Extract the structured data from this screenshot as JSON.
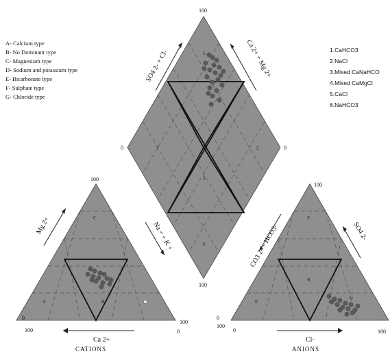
{
  "legend_types": [
    "A- Calcium type",
    "B- No Dominant type",
    "C- Magnesium type",
    "D- Sodium and potassium type",
    "E- Bicarbonate type",
    "F- Sulphate type",
    "G- Chloride type"
  ],
  "legend_water": [
    "1.CaHCO3",
    "2.NaCl",
    "3.Mixed CaNaHCO",
    "4.Mixed CaMgCl",
    "5.CaCl",
    "6.NaHCO3"
  ],
  "diamond": {
    "top": "100",
    "bottom": "100",
    "left": "0",
    "right": "0",
    "ne_label": "Ca 2+ + Mg 2+",
    "nw_label": "SO4 2- + Cl-",
    "zones": [
      "1",
      "2",
      "3",
      "4",
      "5",
      "6"
    ]
  },
  "cations": {
    "title": "CATIONS",
    "bottom_label": "Ca 2+",
    "left_label": "Mg 2+",
    "right_label": "Na + + K +",
    "apex": "100",
    "bl_100": "100",
    "bl_0": "0",
    "br_100": "100",
    "br_0": "0",
    "zones": [
      "A",
      "B",
      "C",
      "D"
    ]
  },
  "anions": {
    "title": "ANIONS",
    "bottom_label": "Cl-",
    "left_label": "CO3 2- + HCO3-",
    "right_label": "SO4 2-",
    "apex": "100",
    "bl_100": "100",
    "bl_0": "0",
    "br_100": "100",
    "br_0": "0",
    "zones": [
      "E",
      "F",
      "G",
      "B"
    ]
  },
  "colors": {
    "fill": "#8f8f8f",
    "sample": "#5a5a5a"
  }
}
